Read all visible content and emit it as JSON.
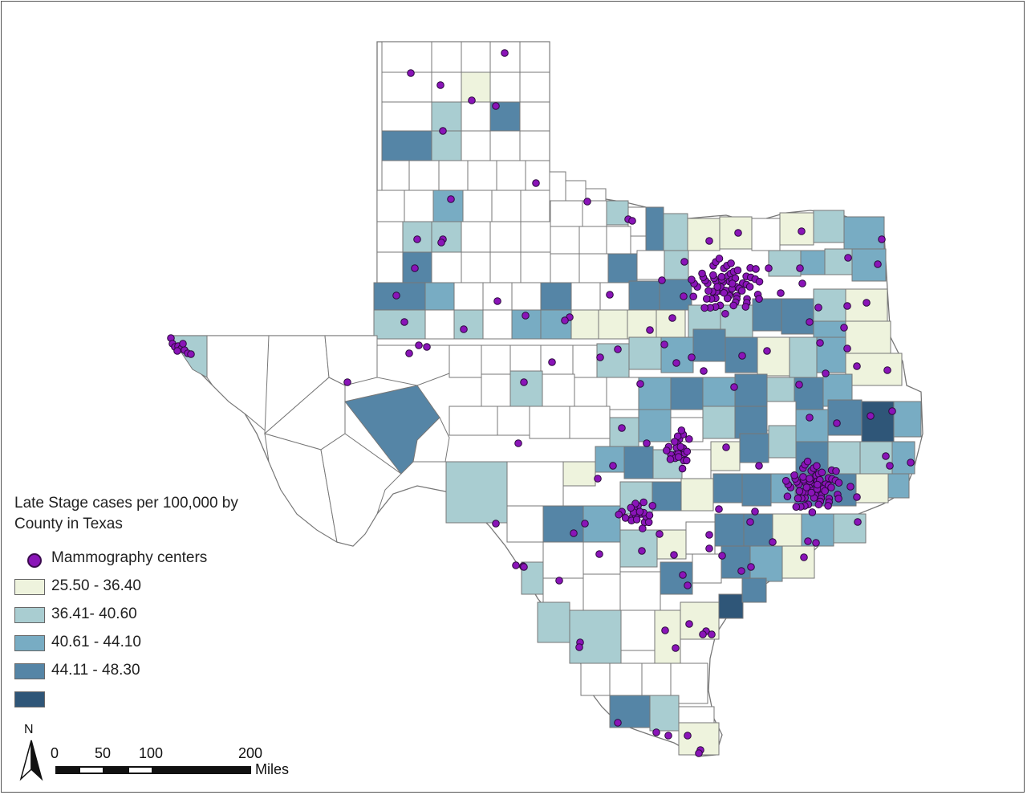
{
  "legend": {
    "title": "Late Stage cases per 100,000 by County in Texas",
    "point_label": "Mammography centers",
    "point_color": "#8a14b8",
    "classes": [
      {
        "label": "25.50 - 36.40",
        "color": "#eef3dd"
      },
      {
        "label": "36.41- 40.60",
        "color": "#a9cdd1"
      },
      {
        "label": "40.61 - 44.10",
        "color": "#78acc3"
      },
      {
        "label": "44.11 - 48.30",
        "color": "#5585a6"
      },
      {
        "label": "",
        "color": "#2f5678"
      }
    ]
  },
  "north_arrow": {
    "label": "N"
  },
  "scale_bar": {
    "ticks": [
      "0",
      "50",
      "100",
      "200"
    ],
    "units": "Miles"
  },
  "colors": {
    "county_outline": "#777777",
    "state_fill_unclassed": "#ffffff",
    "point_fill": "#8a14b8",
    "point_stroke": "#2b0a3d"
  }
}
